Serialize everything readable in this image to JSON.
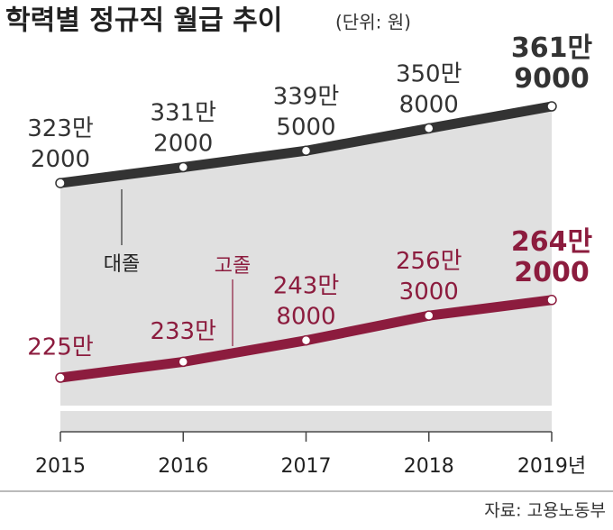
{
  "chart_data": {
    "type": "line",
    "title": "학력별 정규직 월급 추이",
    "subtitle": "(단위: 원)",
    "source": "자료: 고용노동부",
    "categories": [
      "2015",
      "2016",
      "2017",
      "2018",
      "2019년"
    ],
    "series": [
      {
        "name": "대졸",
        "color": "#333333",
        "values": [
          3232000,
          3312000,
          3395000,
          3508000,
          3619000
        ],
        "value_labels": [
          "323만\n2000",
          "331만\n2000",
          "339만\n5000",
          "350만\n8000",
          "361만\n9000"
        ]
      },
      {
        "name": "고졸",
        "color": "#8c1c3e",
        "values": [
          2250000,
          2330000,
          2438000,
          2563000,
          2642000
        ],
        "value_labels": [
          "225만",
          "233만",
          "243만\n8000",
          "256만\n3000",
          "264만\n2000"
        ]
      }
    ]
  }
}
